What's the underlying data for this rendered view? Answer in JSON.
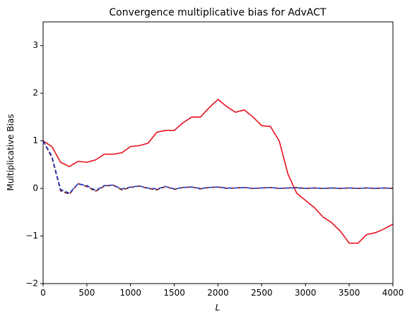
{
  "chart_data": {
    "type": "line",
    "title": "Convergence multiplicative bias for AdvACT",
    "xlabel": "L",
    "ylabel": "Multiplicative Bias",
    "x": [
      0,
      100,
      200,
      300,
      400,
      500,
      600,
      700,
      800,
      900,
      1000,
      1100,
      1200,
      1300,
      1400,
      1500,
      1600,
      1700,
      1800,
      1900,
      2000,
      2100,
      2200,
      2300,
      2400,
      2500,
      2600,
      2700,
      2800,
      2900,
      3000,
      3100,
      3200,
      3300,
      3400,
      3500,
      3600,
      3700,
      3800,
      3900,
      4000
    ],
    "series": [
      {
        "color": "#e8101c",
        "style": "solid",
        "values": [
          1.0,
          0.88,
          0.55,
          0.46,
          0.57,
          0.55,
          0.6,
          0.72,
          0.72,
          0.75,
          0.88,
          0.9,
          0.95,
          1.18,
          1.22,
          1.22,
          1.38,
          1.5,
          1.5,
          1.7,
          1.87,
          1.72,
          1.6,
          1.65,
          1.5,
          1.32,
          1.3,
          1.0,
          0.3,
          -0.1,
          -0.25,
          -0.4,
          -0.6,
          -0.72,
          -0.9,
          -1.15,
          -1.15,
          -0.97,
          -0.93,
          -0.85,
          -0.75
        ]
      },
      {
        "color": "#7a1010",
        "style": "dashed",
        "values": [
          1.0,
          0.65,
          -0.05,
          -0.12,
          0.1,
          0.04,
          -0.06,
          0.05,
          0.07,
          -0.03,
          0.02,
          0.05,
          0.0,
          -0.03,
          0.04,
          -0.02,
          0.02,
          0.03,
          -0.01,
          0.02,
          0.03,
          0.0,
          0.01,
          0.02,
          0.0,
          0.01,
          0.02,
          0.0,
          0.01,
          0.02,
          0.0,
          0.01,
          0.0,
          0.01,
          0.0,
          0.01,
          0.0,
          0.01,
          0.0,
          0.01,
          0.0
        ]
      },
      {
        "color": "#1f3fd0",
        "style": "dashed",
        "values": [
          1.0,
          0.68,
          -0.02,
          -0.1,
          0.1,
          0.06,
          -0.04,
          0.06,
          0.07,
          -0.01,
          0.03,
          0.05,
          0.01,
          -0.01,
          0.04,
          -0.01,
          0.02,
          0.03,
          0.0,
          0.02,
          0.03,
          0.01,
          0.01,
          0.02,
          0.0,
          0.01,
          0.02,
          0.0,
          0.01,
          0.01,
          0.0,
          0.01,
          0.0,
          0.01,
          0.0,
          0.01,
          0.0,
          0.01,
          0.0,
          0.01,
          0.0
        ]
      }
    ],
    "xlim": [
      0,
      4000
    ],
    "xticks": [
      0,
      500,
      1000,
      1500,
      2000,
      2500,
      3000,
      3500,
      4000
    ],
    "ylim": [
      -2,
      3.5
    ],
    "yticks": [
      {
        "value": -2,
        "label": "−2"
      },
      {
        "value": -1,
        "label": "−1"
      },
      0,
      1,
      2,
      3
    ],
    "grid": false
  }
}
